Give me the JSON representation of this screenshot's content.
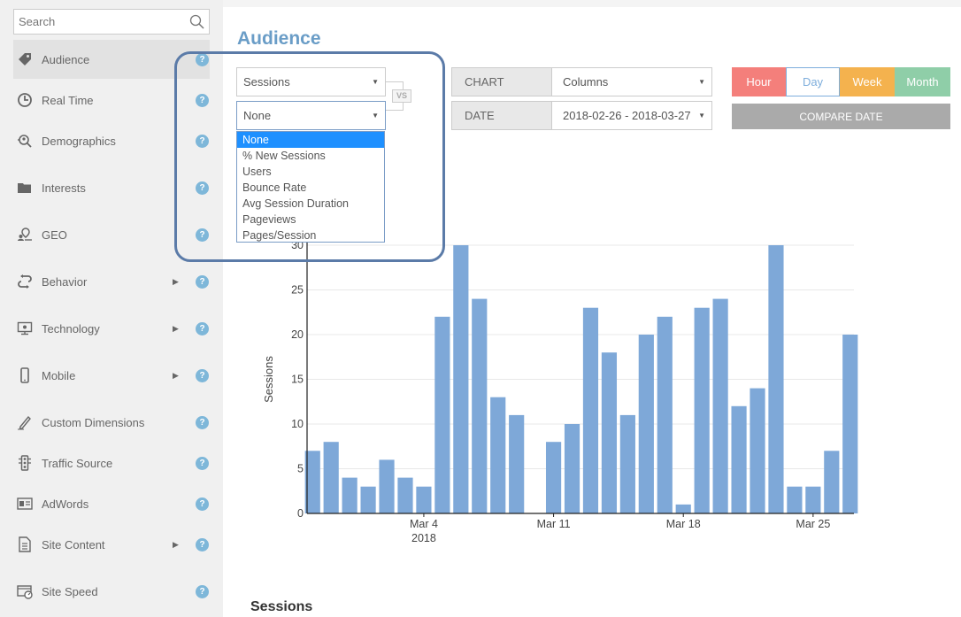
{
  "sidebar": {
    "search_placeholder": "Search",
    "items": [
      {
        "label": "Audience",
        "icon": "tag-icon",
        "arrow": false,
        "active": true
      },
      {
        "label": "Real Time",
        "icon": "clock-icon",
        "arrow": false
      },
      {
        "label": "Demographics",
        "icon": "magnifier-person-icon",
        "arrow": false
      },
      {
        "label": "Interests",
        "icon": "folder-icon",
        "arrow": false
      },
      {
        "label": "GEO",
        "icon": "map-pin-icon",
        "arrow": false
      },
      {
        "label": "Behavior",
        "icon": "refresh-icon",
        "arrow": true
      },
      {
        "label": "Technology",
        "icon": "monitor-icon",
        "arrow": true
      },
      {
        "label": "Mobile",
        "icon": "phone-icon",
        "arrow": true
      },
      {
        "label": "Custom Dimensions",
        "icon": "pencil-icon",
        "arrow": false
      },
      {
        "label": "Traffic Source",
        "icon": "traffic-light-icon",
        "arrow": false
      },
      {
        "label": "AdWords",
        "icon": "ad-icon",
        "arrow": false
      },
      {
        "label": "Site Content",
        "icon": "document-icon",
        "arrow": true
      },
      {
        "label": "Site Speed",
        "icon": "speed-icon",
        "arrow": false
      }
    ],
    "help_glyph": "?",
    "arrow_glyph": "▶"
  },
  "page_title": "Audience",
  "metric_select": {
    "value": "Sessions"
  },
  "compare_select": {
    "value": "None"
  },
  "vs_label": "VS",
  "chart_label": "CHART",
  "chart_type_select": {
    "value": "Columns"
  },
  "date_label": "DATE",
  "date_select": {
    "value": "2018-02-26 - 2018-03-27"
  },
  "granularity": [
    {
      "label": "Hour",
      "color": "#f47f7b",
      "text_color": "#ffffff"
    },
    {
      "label": "Day",
      "color": "#ffffff",
      "text_color": "#7eaedc"
    },
    {
      "label": "Week",
      "color": "#f4b24e",
      "text_color": "#ffffff"
    },
    {
      "label": "Month",
      "color": "#8fcea8",
      "text_color": "#ffffff"
    }
  ],
  "compare_date_button": "COMPARE DATE",
  "dropdown_options": [
    "None",
    "% New Sessions",
    "Users",
    "Bounce Rate",
    "Avg Session Duration",
    "Pageviews",
    "Pages/Session"
  ],
  "dropdown_selected": "None",
  "bottom_title": "Sessions",
  "colors": {
    "bar": "#7ea8d8",
    "accent": "#6a9dc7",
    "highlight_border": "#5b7ba8"
  },
  "chart_data": {
    "type": "bar",
    "ylabel": "Sessions",
    "ylim": [
      0,
      30
    ],
    "yticks": [
      0,
      5,
      10,
      15,
      20,
      25,
      30
    ],
    "categories": [
      "2018-02-26",
      "2018-02-27",
      "2018-02-28",
      "2018-03-01",
      "2018-03-02",
      "2018-03-03",
      "2018-03-04",
      "2018-03-05",
      "2018-03-06",
      "2018-03-07",
      "2018-03-08",
      "2018-03-09",
      "2018-03-10",
      "2018-03-11",
      "2018-03-12",
      "2018-03-13",
      "2018-03-14",
      "2018-03-15",
      "2018-03-16",
      "2018-03-17",
      "2018-03-18",
      "2018-03-19",
      "2018-03-20",
      "2018-03-21",
      "2018-03-22",
      "2018-03-23",
      "2018-03-24",
      "2018-03-25",
      "2018-03-26",
      "2018-03-27"
    ],
    "values": [
      7,
      8,
      4,
      3,
      6,
      4,
      3,
      22,
      30,
      24,
      13,
      11,
      0,
      8,
      10,
      23,
      18,
      11,
      20,
      22,
      1,
      23,
      24,
      12,
      14,
      30,
      3,
      3,
      7,
      20
    ],
    "x_tick_labels": [
      {
        "at": "2018-03-04",
        "label": "Mar 4",
        "sublabel": "2018"
      },
      {
        "at": "2018-03-11",
        "label": "Mar 11",
        "sublabel": ""
      },
      {
        "at": "2018-03-18",
        "label": "Mar 18",
        "sublabel": ""
      },
      {
        "at": "2018-03-25",
        "label": "Mar 25",
        "sublabel": ""
      }
    ],
    "grid": true
  }
}
